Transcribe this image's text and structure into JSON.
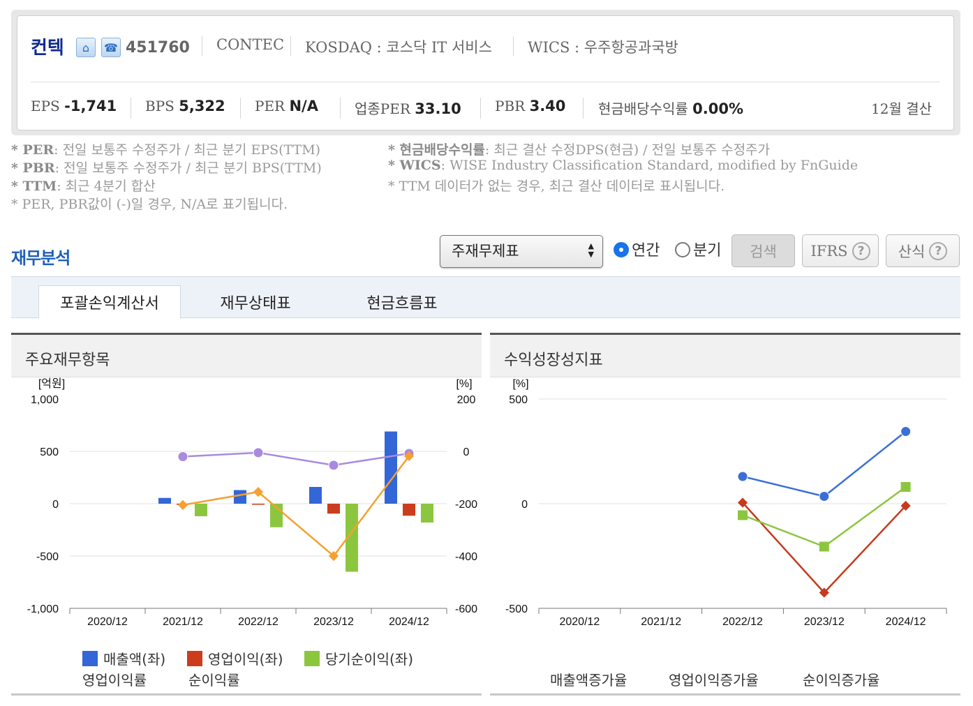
{
  "header": {
    "corp_name": "컨텍",
    "code": "451760",
    "eng_name": "CONTEC",
    "market": "KOSDAQ : 코스닥 IT 서비스",
    "wics": "WICS : 우주항공과국방",
    "settlement": "12월 결산",
    "icons": [
      "home-icon",
      "phone-icon"
    ],
    "metrics": [
      {
        "label": "EPS",
        "value": "-1,741"
      },
      {
        "label": "BPS",
        "value": "5,322"
      },
      {
        "label": "PER",
        "value": "N/A"
      },
      {
        "label": "업종PER",
        "value": "33.10"
      },
      {
        "label": "PBR",
        "value": "3.40"
      },
      {
        "label": "현금배당수익률",
        "value": "0.00%"
      }
    ]
  },
  "notes": {
    "left": [
      {
        "key": "* PER",
        "text": ": 전일 보통주 수정주가 / 최근 분기 EPS(TTM)"
      },
      {
        "key": "* PBR",
        "text": ": 전일 보통주 수정주가 / 최근 분기 BPS(TTM)"
      },
      {
        "key": "* TTM",
        "text": ": 최근 4분기 합산"
      },
      {
        "key": "",
        "text": "* PER, PBR값이 (-)일 경우, N/A로 표기됩니다."
      }
    ],
    "right": [
      {
        "key": "* 현금배당수익률",
        "text": ": 최근 결산 수정DPS(현금) / 전일 보통주 수정주가"
      },
      {
        "key": "* WICS",
        "text": ": WISE Industry Classification Standard, modified by FnGuide"
      },
      {
        "key": "",
        "text": "* TTM 데이터가 없는 경우, 최근 결산 데이터로 표시됩니다."
      }
    ]
  },
  "section": {
    "title": "재무분석",
    "select_value": "주재무제표",
    "radio_annual": "연간",
    "radio_quarter": "분기",
    "search_btn": "검색",
    "ifrs_btn": "IFRS",
    "formula_btn": "산식"
  },
  "tabs": [
    "포괄손익계산서",
    "재무상태표",
    "현금흐름표"
  ],
  "panels": {
    "left_title": "주요재무항목",
    "right_title": "수익성장성지표"
  },
  "colors": {
    "sales": "#3366d6",
    "op_income": "#cc3d1e",
    "net_income": "#8cc63f",
    "op_margin": "#a98ae0",
    "net_margin": "#f5a030",
    "sales_growth": "#3b6fd6",
    "op_growth": "#c63a1e",
    "net_growth": "#8cc63f"
  },
  "chart_data": [
    {
      "type": "bar",
      "categories": [
        "2020/12",
        "2021/12",
        "2022/12",
        "2023/12",
        "2024/12"
      ],
      "ylabel": "[억원]",
      "y2label": "[%]",
      "ylim": [
        -1000,
        1000
      ],
      "y2lim": [
        -600,
        200
      ],
      "yticks": [
        "1,000",
        "500",
        "0",
        "-500",
        "-1,000"
      ],
      "y2ticks": [
        "200",
        "0",
        "-200",
        "-400",
        "-600"
      ],
      "series": [
        {
          "name": "매출액(좌)",
          "kind": "bar",
          "axis": "left",
          "values": [
            null,
            55,
            130,
            160,
            690
          ]
        },
        {
          "name": "영업이익(좌)",
          "kind": "bar",
          "axis": "left",
          "values": [
            null,
            0,
            -10,
            -95,
            -115
          ]
        },
        {
          "name": "당기순이익(좌)",
          "kind": "bar",
          "axis": "left",
          "values": [
            null,
            -120,
            -225,
            -650,
            -180
          ]
        },
        {
          "name": "영업이익률",
          "kind": "line",
          "axis": "right",
          "values": [
            null,
            -20,
            -5,
            -53,
            -8
          ]
        },
        {
          "name": "순이익률",
          "kind": "line",
          "axis": "right",
          "values": [
            null,
            -205,
            -155,
            -400,
            -18
          ]
        }
      ]
    },
    {
      "type": "line",
      "categories": [
        "2020/12",
        "2021/12",
        "2022/12",
        "2023/12",
        "2024/12"
      ],
      "ylabel": "[%]",
      "ylim": [
        -500,
        500
      ],
      "yticks": [
        "500",
        "0",
        "-500"
      ],
      "series": [
        {
          "name": "매출액증가율",
          "values": [
            null,
            null,
            130,
            35,
            345
          ]
        },
        {
          "name": "영업이익증가율",
          "values": [
            null,
            null,
            5,
            -425,
            -10
          ]
        },
        {
          "name": "순이익증가율",
          "values": [
            null,
            null,
            -55,
            -205,
            80
          ]
        }
      ]
    }
  ]
}
